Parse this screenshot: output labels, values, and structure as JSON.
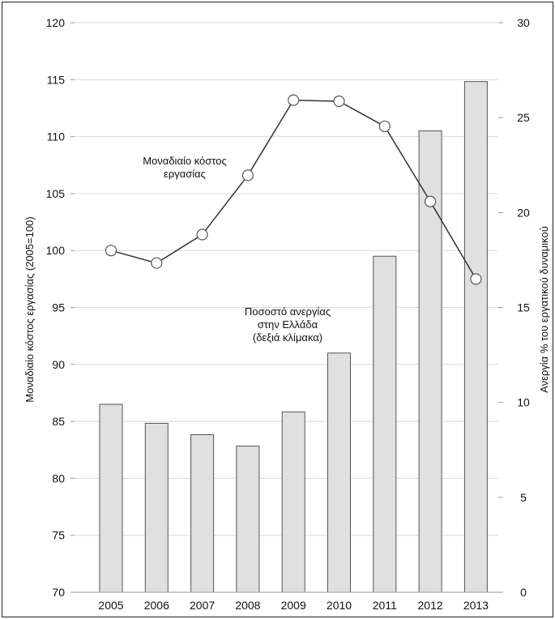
{
  "chart_data": {
    "type": "bar",
    "categories": [
      "2005",
      "2006",
      "2007",
      "2008",
      "2009",
      "2010",
      "2011",
      "2012",
      "2013"
    ],
    "series": [
      {
        "name": "Ποσοστό ανεργίας στην Ελλάδα (δεξιά κλίμακα)",
        "kind": "bar",
        "axis": "right",
        "values": [
          9.9,
          8.9,
          8.3,
          7.7,
          9.5,
          12.6,
          17.7,
          24.3,
          26.9
        ],
        "color": "#e0e0e0"
      },
      {
        "name": "Μοναδιαίο κόστος εργασίας",
        "kind": "line",
        "axis": "left",
        "values": [
          100.0,
          98.9,
          101.4,
          106.6,
          113.2,
          113.1,
          110.9,
          104.3,
          97.5
        ],
        "color": "#333333"
      }
    ],
    "ylabel_left": "Μοναδιαίο κόστος εργασίας (2005=100)",
    "ylabel_right": "Ανεργία % του εργατικού δυναμικού",
    "ylim_left": [
      70,
      120
    ],
    "ylim_right": [
      0,
      30
    ],
    "yticks_left": [
      "70",
      "75",
      "80",
      "85",
      "90",
      "95",
      "100",
      "105",
      "110",
      "115",
      "120"
    ],
    "yticks_right": [
      "0",
      "5",
      "10",
      "15",
      "20",
      "25",
      "30"
    ],
    "grid": true,
    "annotations": {
      "line_label": [
        "Μοναδιαίο κόστος",
        "εργασίας"
      ],
      "bar_label": [
        "Ποσοστό ανεργίας",
        "στην Ελλάδα",
        "(δεξιά κλίμακα)"
      ]
    }
  }
}
